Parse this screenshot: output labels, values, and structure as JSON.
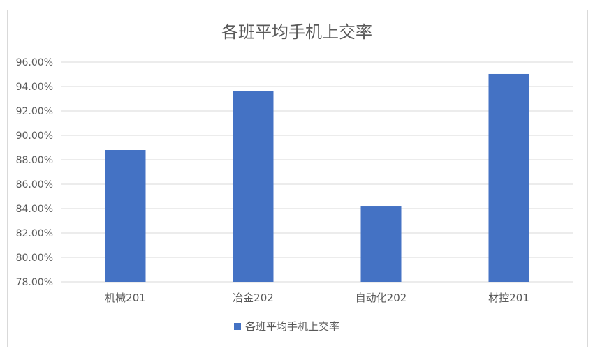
{
  "chart_data": {
    "type": "bar",
    "title": "各班平均手机上交率",
    "categories": [
      "机械201",
      "冶金202",
      "自动化202",
      "材控201"
    ],
    "series": [
      {
        "name": "各班平均手机上交率",
        "values": [
          88.8,
          93.6,
          84.17,
          95.03
        ],
        "color": "#4472c4"
      }
    ],
    "ylim": [
      78,
      96
    ],
    "yticks": [
      "78.00%",
      "80.00%",
      "82.00%",
      "84.00%",
      "86.00%",
      "88.00%",
      "90.00%",
      "92.00%",
      "94.00%",
      "96.00%"
    ],
    "grid": true,
    "legend": "bottom",
    "xlabel": "",
    "ylabel": ""
  }
}
